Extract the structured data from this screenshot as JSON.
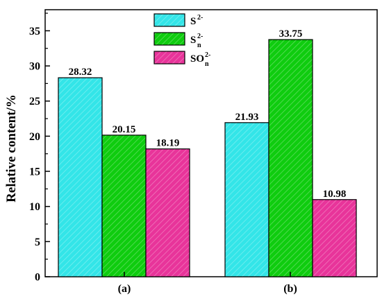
{
  "chart_data": {
    "type": "bar",
    "categories": [
      "(a)",
      "(b)"
    ],
    "ylabel": "Relative content/%",
    "ylim": [
      0,
      38
    ],
    "yticks": [
      0,
      5,
      10,
      15,
      20,
      25,
      30,
      35
    ],
    "legend_position": "top-center",
    "series": [
      {
        "name": "S2-",
        "legend_main": "S",
        "legend_sup": "2-",
        "legend_sub": "",
        "color": "#33E5E8",
        "values": [
          28.32,
          21.93
        ],
        "labels": [
          "28.32",
          "21.93"
        ]
      },
      {
        "name": "Sn2-",
        "legend_main": "S",
        "legend_sup": "2-",
        "legend_sub": "n",
        "color": "#0FCC0F",
        "values": [
          20.15,
          33.75
        ],
        "labels": [
          "20.15",
          "33.75"
        ]
      },
      {
        "name": "SOn2-",
        "legend_main": "SO",
        "legend_sup": "2-",
        "legend_sub": "n",
        "color": "#E8349A",
        "values": [
          18.19,
          10.98
        ],
        "labels": [
          "18.19",
          "10.98"
        ]
      }
    ]
  }
}
